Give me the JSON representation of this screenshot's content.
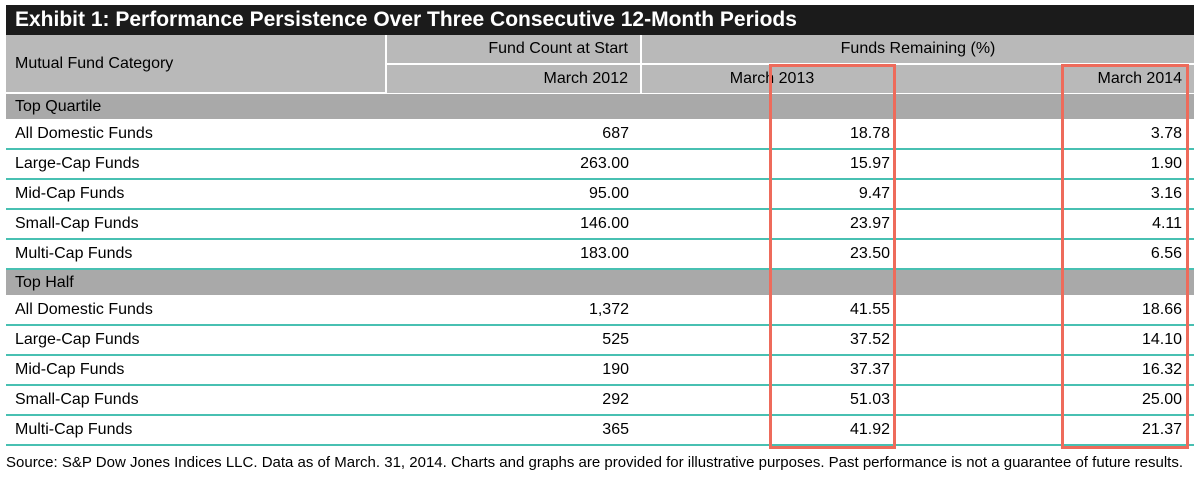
{
  "title": "Exhibit 1: Performance Persistence Over Three Consecutive 12-Month Periods",
  "header": {
    "category_label": "Mutual Fund Category",
    "count_label": "Fund Count at Start",
    "remaining_label": "Funds Remaining (%)",
    "period_start": "March 2012",
    "period_2013": "March 2013",
    "period_2014": "March 2014"
  },
  "sections": [
    {
      "label": "Top Quartile",
      "rows": [
        {
          "category": "All Domestic Funds",
          "count": "687",
          "m2013": "18.78",
          "m2014": "3.78"
        },
        {
          "category": "Large-Cap Funds",
          "count": "263.00",
          "m2013": "15.97",
          "m2014": "1.90"
        },
        {
          "category": "Mid-Cap Funds",
          "count": "95.00",
          "m2013": "9.47",
          "m2014": "3.16"
        },
        {
          "category": "Small-Cap Funds",
          "count": "146.00",
          "m2013": "23.97",
          "m2014": "4.11"
        },
        {
          "category": "Multi-Cap Funds",
          "count": "183.00",
          "m2013": "23.50",
          "m2014": "6.56"
        }
      ]
    },
    {
      "label": "Top Half",
      "rows": [
        {
          "category": "All Domestic Funds",
          "count": "1,372",
          "m2013": "41.55",
          "m2014": "18.66"
        },
        {
          "category": "Large-Cap Funds",
          "count": "525",
          "m2013": "37.52",
          "m2014": "14.10"
        },
        {
          "category": "Mid-Cap Funds",
          "count": "190",
          "m2013": "37.37",
          "m2014": "16.32"
        },
        {
          "category": "Small-Cap Funds",
          "count": "292",
          "m2013": "51.03",
          "m2014": "25.00"
        },
        {
          "category": "Multi-Cap Funds",
          "count": "365",
          "m2013": "41.92",
          "m2014": "21.37"
        }
      ]
    }
  ],
  "footnote": "Source: S&P Dow Jones Indices LLC.  Data as of March. 31, 2014.  Charts and graphs are provided for illustrative purposes.  Past performance is not a guarantee of future results.",
  "colors": {
    "title_bg": "#1b1b1b",
    "header_bg": "#b9b9b9",
    "section_bg": "#a9a9a9",
    "row_rule": "#48c0b2",
    "highlight": "#ee6b5b"
  }
}
